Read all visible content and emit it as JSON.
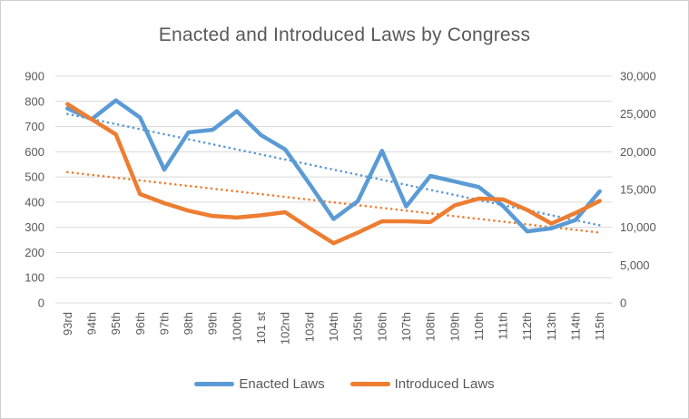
{
  "colors": {
    "enacted_blue": "#5B9BD5",
    "introduced_orange": "#ED7D31",
    "gridline": "#d9d9d9",
    "axis_text": "#595959",
    "chart_border": "#d0d0d0",
    "background": "#ffffff"
  },
  "chart_data": {
    "type": "line",
    "title": "Enacted and Introduced Laws by Congress",
    "categories": [
      "93rd",
      "94th",
      "95th",
      "96th",
      "97th",
      "98th",
      "99th",
      "100th",
      "101 st",
      "102nd",
      "103rd",
      "104th",
      "105th",
      "106th",
      "107th",
      "108th",
      "109th",
      "110th",
      "111th",
      "112th",
      "113th",
      "114th",
      "115th"
    ],
    "series": [
      {
        "name": "Enacted Laws",
        "axis": "left",
        "color": "#5B9BD5",
        "values": [
          772,
          729,
          804,
          736,
          529,
          677,
          687,
          761,
          666,
          609,
          473,
          333,
          404,
          604,
          383,
          504,
          482,
          460,
          385,
          284,
          296,
          329,
          443
        ]
      },
      {
        "name": "Introduced Laws",
        "axis": "right",
        "color": "#ED7D31",
        "values": [
          26300,
          24300,
          22300,
          14400,
          13200,
          12200,
          11500,
          11300,
          11600,
          12000,
          9900,
          7900,
          9300,
          10800,
          10800,
          10700,
          12900,
          13800,
          13700,
          12300,
          10500,
          11900,
          13500
        ]
      }
    ],
    "trendlines": [
      {
        "series": "Enacted Laws",
        "axis": "left",
        "color": "#5B9BD5",
        "style": "dotted",
        "start": 750,
        "end": 308
      },
      {
        "series": "Introduced Laws",
        "axis": "right",
        "color": "#ED7D31",
        "style": "dotted",
        "start": 17300,
        "end": 9300
      }
    ],
    "left_axis": {
      "min": 0,
      "max": 900,
      "step": 100,
      "ticks": [
        "0",
        "100",
        "200",
        "300",
        "400",
        "500",
        "600",
        "700",
        "800",
        "900"
      ]
    },
    "right_axis": {
      "min": 0,
      "max": 30000,
      "step": 5000,
      "ticks": [
        "0",
        "5,000",
        "10,000",
        "15,000",
        "20,000",
        "25,000",
        "30,000"
      ]
    },
    "grid": true,
    "x_labels_rotated": true,
    "legend_position": "bottom"
  },
  "legend": {
    "items": [
      {
        "label": "Enacted Laws",
        "color": "#5B9BD5"
      },
      {
        "label": "Introduced Laws",
        "color": "#ED7D31"
      }
    ]
  }
}
